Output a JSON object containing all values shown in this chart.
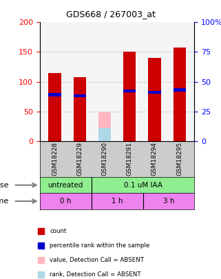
{
  "title": "GDS668 / 267003_at",
  "samples": [
    "GSM18228",
    "GSM18229",
    "GSM18290",
    "GSM18291",
    "GSM18294",
    "GSM18295"
  ],
  "count_values": [
    115,
    108,
    0,
    150,
    140,
    157
  ],
  "percentile_values": [
    39,
    38,
    0,
    42,
    41,
    43
  ],
  "absent_value_values": [
    0,
    0,
    48,
    0,
    0,
    0
  ],
  "absent_rank_values": [
    0,
    0,
    22,
    0,
    0,
    0
  ],
  "absent_flags": [
    false,
    false,
    true,
    false,
    false,
    false
  ],
  "bar_width": 0.5,
  "ylim_left": [
    0,
    200
  ],
  "ylim_right": [
    0,
    100
  ],
  "yticks_left": [
    0,
    50,
    100,
    150,
    200
  ],
  "yticks_right": [
    0,
    25,
    50,
    75,
    100
  ],
  "dose_boundary": 0.3333333333333333,
  "time_boundaries": [
    0.3333333333333333,
    0.6666666666666666
  ],
  "dose_label": "dose",
  "time_label": "time",
  "count_color": "#cc0000",
  "percentile_color": "#0000cc",
  "absent_value_color": "#ffb6c1",
  "absent_rank_color": "#add8e6",
  "grid_color": "#888888",
  "background_color": "#ffffff",
  "bar_area_bg": "#f5f5f5",
  "label_area_bg": "#cccccc",
  "dose_color": "#90ee90",
  "time_color": "#ee82ee",
  "legend_items": [
    {
      "color": "#cc0000",
      "label": "count"
    },
    {
      "color": "#0000cc",
      "label": "percentile rank within the sample"
    },
    {
      "color": "#ffb6c1",
      "label": "value, Detection Call = ABSENT"
    },
    {
      "color": "#add8e6",
      "label": "rank, Detection Call = ABSENT"
    }
  ]
}
